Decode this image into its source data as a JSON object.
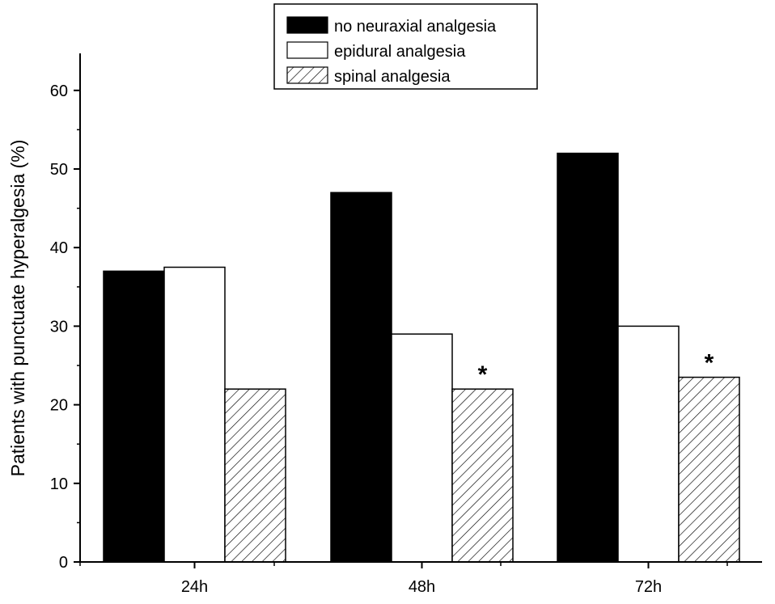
{
  "chart_data": {
    "type": "bar",
    "title": "",
    "xlabel": "",
    "ylabel": "Patients with punctuate hyperalgesia (%)",
    "ylim": [
      0,
      65
    ],
    "yticks": [
      "0",
      "10",
      "20",
      "30",
      "40",
      "50",
      "60"
    ],
    "categories": [
      "24h",
      "48h",
      "72h"
    ],
    "legend_position": "top-center",
    "series": [
      {
        "name": "no neuraxial analgesia",
        "values": [
          37,
          47,
          52
        ],
        "fill": "solid-black"
      },
      {
        "name": "epidural analgesia",
        "values": [
          37.5,
          29,
          30
        ],
        "fill": "white"
      },
      {
        "name": "spinal analgesia",
        "values": [
          22,
          22,
          23.5
        ],
        "fill": "diagonal-hatch"
      }
    ],
    "annotations": [
      {
        "text": "*",
        "category": "48h",
        "series": "spinal analgesia"
      },
      {
        "text": "*",
        "category": "72h",
        "series": "spinal analgesia"
      }
    ]
  }
}
